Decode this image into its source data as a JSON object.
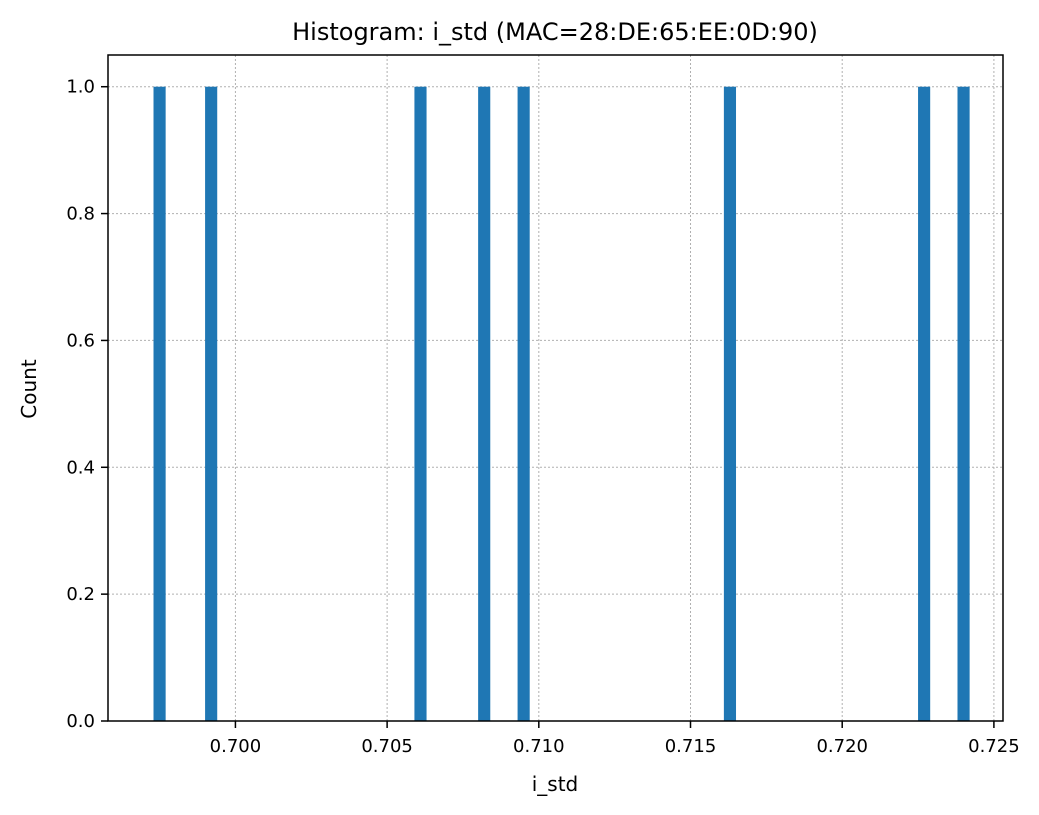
{
  "chart_data": {
    "type": "bar",
    "title": "Histogram: i_std (MAC=28:DE:65:EE:0D:90)",
    "xlabel": "i_std",
    "ylabel": "Count",
    "xlim": [
      0.6958,
      0.7253
    ],
    "ylim": [
      0,
      1.05
    ],
    "bin_width": 0.0004,
    "grid": true,
    "x_ticks": [
      0.7,
      0.705,
      0.71,
      0.715,
      0.72,
      0.725
    ],
    "x_tick_labels": [
      "0.700",
      "0.705",
      "0.710",
      "0.715",
      "0.720",
      "0.725"
    ],
    "y_ticks": [
      0.0,
      0.2,
      0.4,
      0.6,
      0.8,
      1.0
    ],
    "y_tick_labels": [
      "0.0",
      "0.2",
      "0.4",
      "0.6",
      "0.8",
      "1.0"
    ],
    "bins": [
      0.6975,
      0.6992,
      0.7061,
      0.7082,
      0.7095,
      0.7163,
      0.7227,
      0.724
    ],
    "values": [
      1,
      1,
      1,
      1,
      1,
      1,
      1,
      1
    ],
    "bar_color": "#1f77b4"
  }
}
